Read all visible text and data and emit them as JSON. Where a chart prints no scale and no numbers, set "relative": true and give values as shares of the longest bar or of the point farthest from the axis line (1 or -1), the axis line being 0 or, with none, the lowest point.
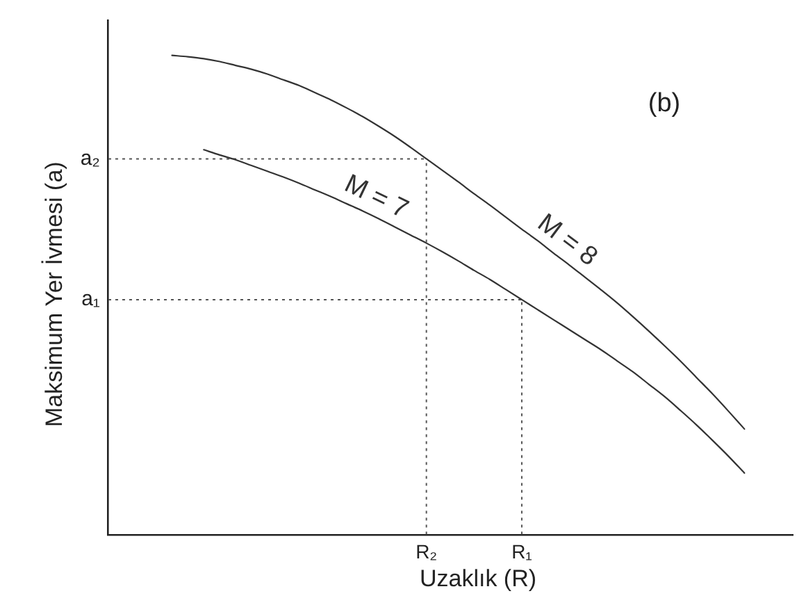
{
  "chart_data": {
    "type": "line",
    "title": "(b)",
    "xlabel": "Uzaklık (R)",
    "ylabel": "Maksimum Yer İvmesi (a)",
    "relative": true,
    "marker": "none",
    "categories": [
      null,
      null,
      null,
      null,
      null,
      null,
      null,
      null,
      null,
      null,
      null,
      null,
      null,
      null,
      null,
      null,
      null,
      null,
      null,
      null,
      "R₂",
      null,
      null,
      null,
      null,
      null,
      "R₁",
      null,
      null,
      null,
      null,
      null,
      null,
      null,
      null,
      null,
      null,
      null,
      null,
      null,
      null,
      null,
      null,
      null
    ],
    "series": [
      {
        "name": "M = 7",
        "color": "#333333",
        "values": [
          null,
          null,
          null,
          null,
          null,
          null,
          0.803,
          0.792,
          0.782,
          0.77,
          0.758,
          0.746,
          0.733,
          0.719,
          0.705,
          0.69,
          0.675,
          0.659,
          0.642,
          0.625,
          0.608,
          0.59,
          0.571,
          0.551,
          0.532,
          0.511,
          0.49,
          0.469,
          0.448,
          0.427,
          0.406,
          0.385,
          0.362,
          0.339,
          0.313,
          0.287,
          0.258,
          0.228,
          0.196,
          0.163,
          0.128,
          null,
          null,
          null
        ]
      },
      {
        "name": "M = 8",
        "color": "#333333",
        "values": [
          null,
          null,
          null,
          null,
          1.0,
          0.997,
          0.993,
          0.987,
          0.979,
          0.971,
          0.961,
          0.949,
          0.937,
          0.922,
          0.907,
          0.89,
          0.872,
          0.852,
          0.831,
          0.808,
          0.784,
          0.76,
          0.736,
          0.711,
          0.687,
          0.662,
          0.637,
          0.613,
          0.587,
          0.562,
          0.536,
          0.51,
          0.483,
          0.454,
          0.424,
          0.393,
          0.361,
          0.327,
          0.293,
          0.257,
          0.22,
          null,
          null,
          null
        ]
      }
    ],
    "ref_lines": [
      {
        "axis": "y",
        "value": 0.784,
        "label": "a₂",
        "color": "#555555",
        "line_style": "dotted"
      },
      {
        "axis": "x",
        "value": "R₂",
        "color": "#555555",
        "line_style": "dotted"
      },
      {
        "axis": "y",
        "value": 0.49,
        "label": "a₁",
        "color": "#555555",
        "line_style": "dotted"
      },
      {
        "axis": "x",
        "value": "R₁",
        "color": "#555555",
        "line_style": "dotted"
      }
    ]
  }
}
